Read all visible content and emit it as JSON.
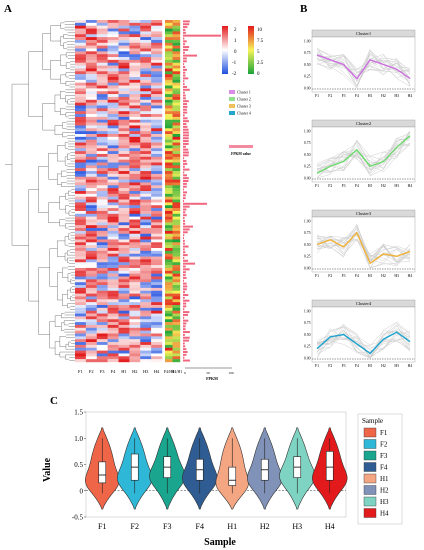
{
  "panels": {
    "a": "A",
    "b": "B",
    "c": "C"
  },
  "heatmap": {
    "columns": [
      "F1",
      "F2",
      "F3",
      "F4",
      "H1",
      "H2",
      "H3",
      "H4"
    ],
    "ratio_columns": [
      "F4/H1",
      "H4/H1"
    ],
    "bar_axis_label": "FPKM",
    "bar_ticks": [
      "0",
      "50",
      "100"
    ],
    "scale_left": {
      "max": "2",
      "mid": "1",
      "zero": "0",
      "low": "-1",
      "min": "-2"
    },
    "scale_right": {
      "max": "10",
      "mid_high": "7.5",
      "mid": "5",
      "mid_low": "2.5",
      "min": "0"
    },
    "cluster_legend": [
      "Cluster 1",
      "Cluster 2",
      "Cluster 3",
      "Cluster 4"
    ],
    "cluster_colors": [
      "#d98be8",
      "#8fe08f",
      "#f0c35a",
      "#24a6cf"
    ],
    "fpkm_legend": "FPKM value"
  },
  "clusters": {
    "x_labels": [
      "F1",
      "F2",
      "F3",
      "F4",
      "H1",
      "H2",
      "H3",
      "H4"
    ],
    "y_ticks": [
      "0.00",
      "0.25",
      "0.50",
      "0.75",
      "1.00"
    ],
    "items": [
      {
        "title": "Cluster1",
        "color": "#cc6fdf",
        "profile": [
          0.7,
          0.6,
          0.5,
          0.2,
          0.6,
          0.5,
          0.4,
          0.2
        ]
      },
      {
        "title": "Cluster2",
        "color": "#6edb6e",
        "profile": [
          0.1,
          0.25,
          0.35,
          0.6,
          0.25,
          0.35,
          0.65,
          0.9
        ]
      },
      {
        "title": "Cluster3",
        "color": "#f0b23a",
        "profile": [
          0.5,
          0.6,
          0.45,
          0.75,
          0.1,
          0.3,
          0.25,
          0.35
        ]
      },
      {
        "title": "Cluster4",
        "color": "#1aa2cf",
        "profile": [
          0.2,
          0.45,
          0.5,
          0.3,
          0.1,
          0.4,
          0.55,
          0.35
        ]
      }
    ]
  },
  "violin": {
    "ylabel": "Value",
    "xlabel": "Sample",
    "y_ticks": [
      "-0.5",
      "0",
      "0.5",
      "1.0",
      "1.5"
    ],
    "legend_title": "Sample",
    "samples": [
      {
        "name": "F1",
        "color": "#ef6548",
        "median": 0.3,
        "q1": 0.15,
        "q3": 0.55
      },
      {
        "name": "F2",
        "color": "#2fb7d8",
        "median": 0.45,
        "q1": 0.2,
        "q3": 0.7
      },
      {
        "name": "F3",
        "color": "#19a58e",
        "median": 0.45,
        "q1": 0.25,
        "q3": 0.65
      },
      {
        "name": "F4",
        "color": "#2f5c92",
        "median": 0.4,
        "q1": 0.2,
        "q3": 0.6
      },
      {
        "name": "H1",
        "color": "#f4a582",
        "median": 0.2,
        "q1": 0.1,
        "q3": 0.45
      },
      {
        "name": "H2",
        "color": "#8192b8",
        "median": 0.4,
        "q1": 0.2,
        "q3": 0.6
      },
      {
        "name": "H3",
        "color": "#7fd3c2",
        "median": 0.45,
        "q1": 0.25,
        "q3": 0.65
      },
      {
        "name": "H4",
        "color": "#e31a1c",
        "median": 0.45,
        "q1": 0.2,
        "q3": 0.75
      }
    ]
  }
}
